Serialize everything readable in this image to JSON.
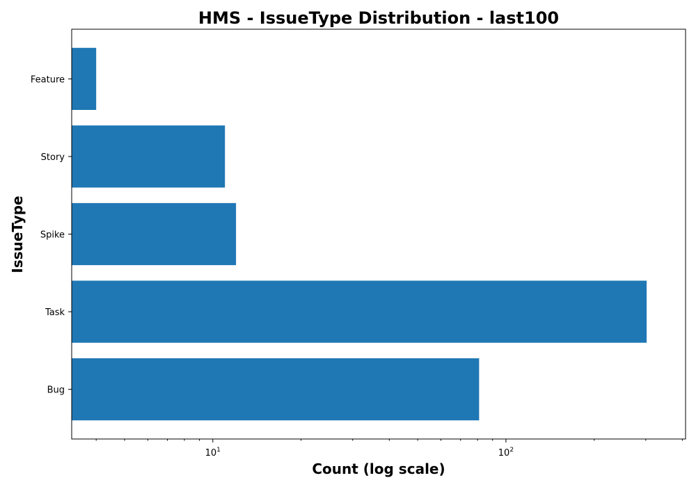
{
  "chart_data": {
    "type": "bar",
    "orientation": "horizontal",
    "title": "HMS - IssueType Distribution - last100",
    "xlabel": "Count (log scale)",
    "ylabel": "IssueType",
    "xscale": "log",
    "xlim": [
      3.3,
      410
    ],
    "major_ticks": [
      10,
      100
    ],
    "major_tick_labels": [
      {
        "base": "10",
        "exp": "1"
      },
      {
        "base": "10",
        "exp": "2"
      }
    ],
    "categories": [
      "Bug",
      "Task",
      "Spike",
      "Story",
      "Feature"
    ],
    "values": [
      81,
      302,
      12,
      11,
      4
    ],
    "bar_color": "#1f77b4",
    "grid": false,
    "legend": "none"
  }
}
